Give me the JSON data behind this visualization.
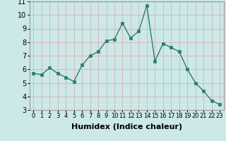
{
  "xlabel": "Humidex (Indice chaleur)",
  "x": [
    0,
    1,
    2,
    3,
    4,
    5,
    6,
    7,
    8,
    9,
    10,
    11,
    12,
    13,
    14,
    15,
    16,
    17,
    18,
    19,
    20,
    21,
    22,
    23
  ],
  "y": [
    5.7,
    5.6,
    6.1,
    5.7,
    5.4,
    5.1,
    6.3,
    7.0,
    7.3,
    8.1,
    8.2,
    9.4,
    8.3,
    8.8,
    10.7,
    6.6,
    7.9,
    7.6,
    7.3,
    6.0,
    5.0,
    4.4,
    3.7,
    3.4
  ],
  "ylim": [
    3,
    11
  ],
  "yticks": [
    3,
    4,
    5,
    6,
    7,
    8,
    9,
    10,
    11
  ],
  "line_color": "#2e7d6e",
  "marker": "s",
  "marker_size": 2.5,
  "bg_color": "#cce8e8",
  "grid_color": "#d9b8b8",
  "axis_label_fontsize": 8,
  "tick_fontsize": 7
}
